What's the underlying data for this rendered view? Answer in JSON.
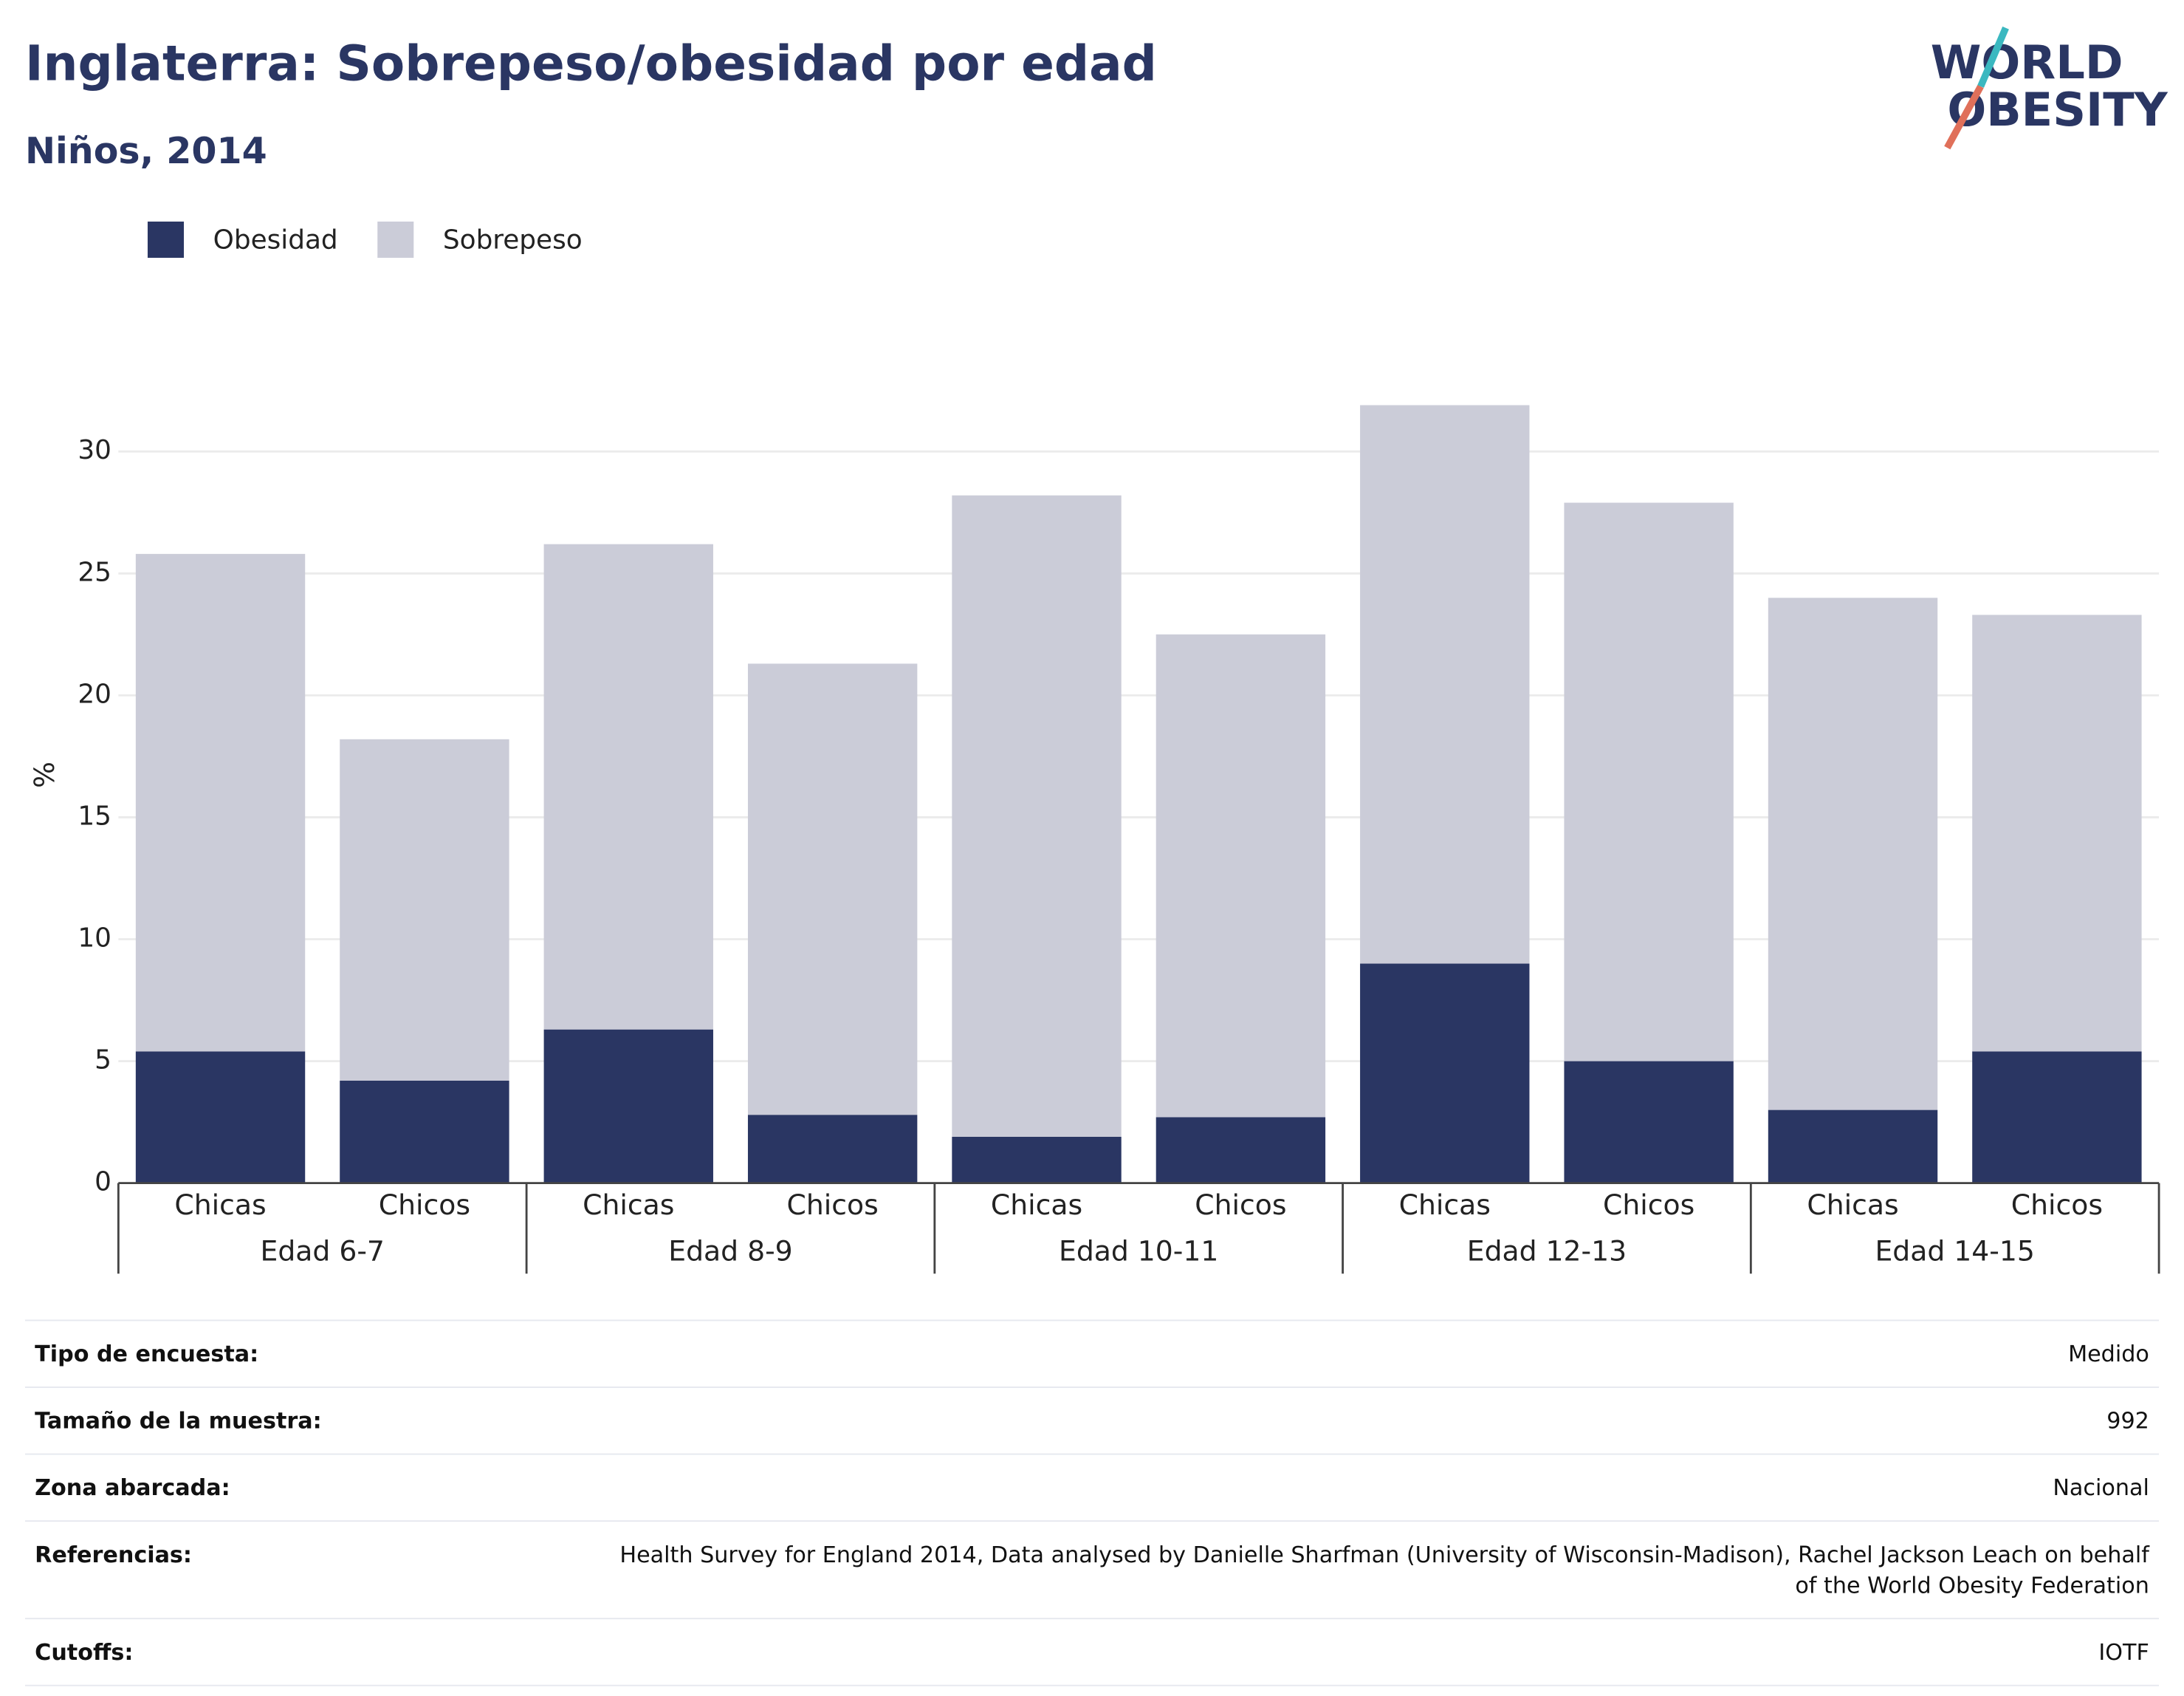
{
  "chart_data": {
    "type": "stacked-bar",
    "title": "Inglaterra: Sobrepeso/obesidad por edad",
    "subtitle": "Niños, 2014",
    "logo": [
      "WORLD",
      "OBESITY"
    ],
    "ylabel": "%",
    "categories": [
      "Chicas",
      "Chicos",
      "Chicas",
      "Chicos",
      "Chicas",
      "Chicos",
      "Chicas",
      "Chicos",
      "Chicas",
      "Chicos"
    ],
    "groups": [
      "Edad 6-7",
      "Edad 8-9",
      "Edad 10-11",
      "Edad 12-13",
      "Edad 14-15"
    ],
    "series": [
      {
        "name": "Obesidad",
        "color": "#2a3663",
        "values": [
          5.4,
          4.2,
          6.3,
          2.8,
          1.9,
          2.7,
          9.0,
          5.0,
          3.0,
          5.4
        ]
      },
      {
        "name": "Sobrepeso",
        "color": "#cbccd8",
        "values": [
          20.4,
          14.0,
          19.9,
          18.5,
          26.3,
          19.8,
          22.9,
          22.9,
          21.0,
          17.9
        ]
      }
    ],
    "ylim": [
      0,
      32.5
    ],
    "yticks": [
      0,
      5,
      10,
      15,
      20,
      25,
      30
    ],
    "grid": true
  },
  "table": {
    "rows": [
      [
        "Tipo de encuesta:",
        "Medido"
      ],
      [
        "Tamaño de la muestra:",
        "992"
      ],
      [
        "Zona abarcada:",
        "Nacional"
      ],
      [
        "Referencias:",
        "Health Survey for England 2014, Data analysed by Danielle Sharfman (University of Wisconsin-Madison), Rachel Jackson Leach on behalf of the World Obesity Federation"
      ],
      [
        "Cutoffs:",
        "IOTF"
      ]
    ]
  }
}
